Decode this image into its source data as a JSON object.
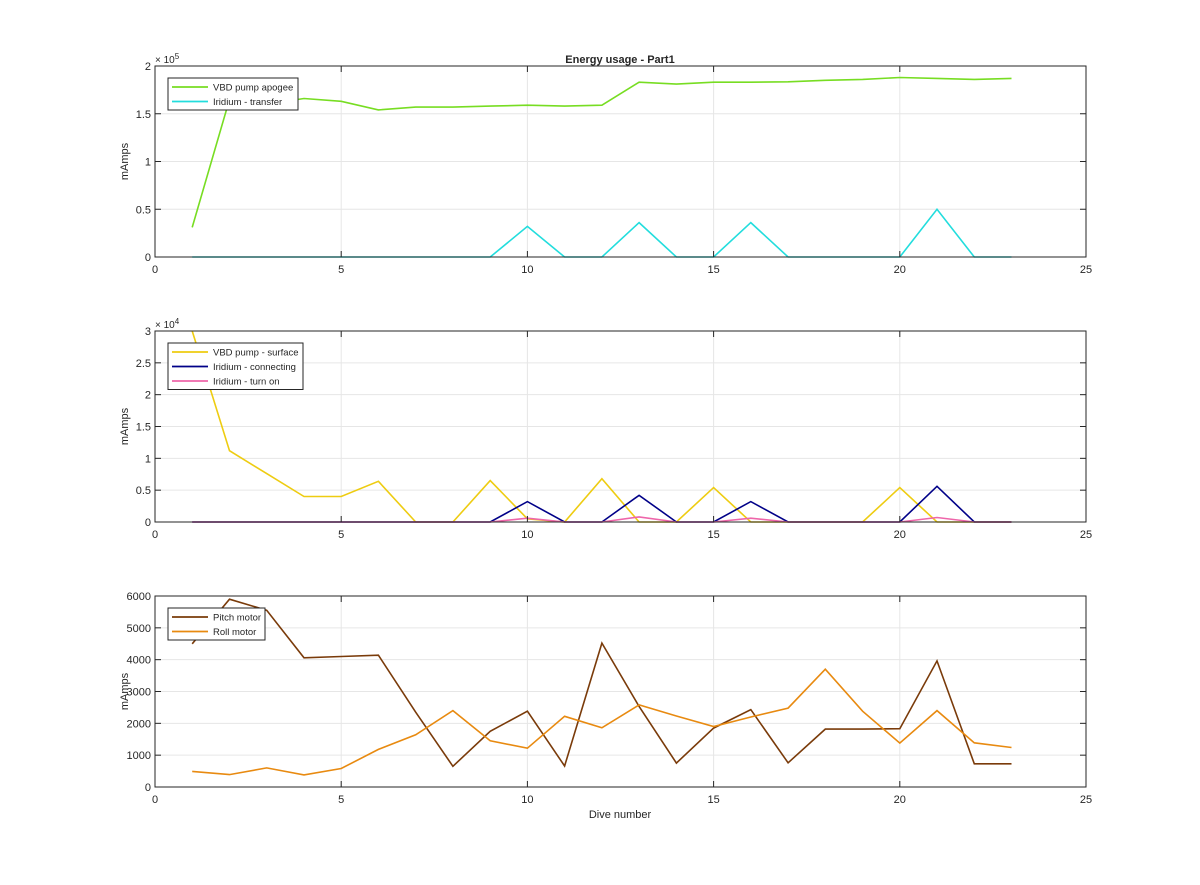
{
  "figure": {
    "title": "Energy usage - Part1",
    "xlabel": "Dive number"
  },
  "chart_data": [
    {
      "type": "line",
      "title": "Energy usage - Part1",
      "xlabel": "",
      "ylabel": "mAmps",
      "xlim": [
        0,
        25
      ],
      "ylim": [
        0,
        200000
      ],
      "xticks": [
        0,
        5,
        10,
        15,
        20,
        25
      ],
      "yticks": [
        0,
        50000,
        100000,
        150000,
        200000
      ],
      "ytick_labels": [
        "0",
        "0.5",
        "1",
        "1.5",
        "2"
      ],
      "exponent_label": "× 10",
      "exponent": "5",
      "grid": true,
      "legend": "top-left",
      "x": [
        1,
        2,
        3,
        4,
        5,
        6,
        7,
        8,
        9,
        10,
        11,
        12,
        13,
        14,
        15,
        16,
        17,
        18,
        19,
        20,
        21,
        22,
        23
      ],
      "series": [
        {
          "name": "VBD pump apogee",
          "color": "#77dd22",
          "values": [
            31000,
            165000,
            160000,
            166000,
            163000,
            154000,
            157000,
            157000,
            158000,
            159000,
            158000,
            159000,
            183000,
            181000,
            183000,
            183000,
            183500,
            185000,
            186000,
            188000,
            187000,
            186000,
            187000
          ]
        },
        {
          "name": "Iridium - transfer",
          "color": "#22dddd",
          "values": [
            0,
            0,
            0,
            0,
            0,
            0,
            0,
            0,
            0,
            32000,
            0,
            0,
            36000,
            0,
            0,
            36000,
            0,
            0,
            0,
            0,
            50000,
            0,
            0
          ]
        }
      ]
    },
    {
      "type": "line",
      "title": "",
      "xlabel": "",
      "ylabel": "mAmps",
      "xlim": [
        0,
        25
      ],
      "ylim": [
        0,
        30000
      ],
      "xticks": [
        0,
        5,
        10,
        15,
        20,
        25
      ],
      "yticks": [
        0,
        5000,
        10000,
        15000,
        20000,
        25000,
        30000
      ],
      "ytick_labels": [
        "0",
        "0.5",
        "1",
        "1.5",
        "2",
        "2.5",
        "3"
      ],
      "exponent_label": "× 10",
      "exponent": "4",
      "grid": true,
      "legend": "top-left",
      "x": [
        1,
        2,
        3,
        4,
        5,
        6,
        7,
        8,
        9,
        10,
        11,
        12,
        13,
        14,
        15,
        16,
        17,
        18,
        19,
        20,
        21,
        22,
        23
      ],
      "series": [
        {
          "name": "VBD pump - surface",
          "color": "#eecc11",
          "values": [
            30000,
            11200,
            7600,
            4000,
            4000,
            6400,
            0,
            0,
            6500,
            500,
            0,
            6800,
            0,
            0,
            5400,
            0,
            0,
            0,
            0,
            5400,
            0,
            0,
            0
          ]
        },
        {
          "name": "Iridium - connecting",
          "color": "#000088",
          "values": [
            0,
            0,
            0,
            0,
            0,
            0,
            0,
            0,
            0,
            3200,
            0,
            0,
            4200,
            0,
            0,
            3200,
            0,
            0,
            0,
            0,
            5600,
            0,
            0
          ]
        },
        {
          "name": "Iridium - turn on",
          "color": "#ee66aa",
          "values": [
            0,
            0,
            0,
            0,
            0,
            0,
            0,
            0,
            0,
            600,
            0,
            0,
            800,
            0,
            0,
            600,
            0,
            0,
            0,
            0,
            700,
            0,
            0
          ]
        }
      ]
    },
    {
      "type": "line",
      "title": "",
      "xlabel": "Dive number",
      "ylabel": "mAmps",
      "xlim": [
        0,
        25
      ],
      "ylim": [
        0,
        6000
      ],
      "xticks": [
        0,
        5,
        10,
        15,
        20,
        25
      ],
      "yticks": [
        0,
        1000,
        2000,
        3000,
        4000,
        5000,
        6000
      ],
      "ytick_labels": [
        "0",
        "1000",
        "2000",
        "3000",
        "4000",
        "5000",
        "6000"
      ],
      "exponent_label": "",
      "exponent": "",
      "grid": true,
      "legend": "top-left",
      "x": [
        1,
        2,
        3,
        4,
        5,
        6,
        7,
        8,
        9,
        10,
        11,
        12,
        13,
        14,
        15,
        16,
        17,
        18,
        19,
        20,
        21,
        22,
        23
      ],
      "series": [
        {
          "name": "Pitch motor",
          "color": "#7a3b0a",
          "values": [
            4500,
            5900,
            5550,
            4060,
            4100,
            4140,
            2350,
            650,
            1750,
            2380,
            660,
            4520,
            2530,
            750,
            1850,
            2430,
            760,
            1820,
            1820,
            1830,
            3960,
            730,
            730
          ]
        },
        {
          "name": "Roll motor",
          "color": "#e88a10",
          "values": [
            490,
            390,
            600,
            380,
            580,
            1180,
            1640,
            2400,
            1450,
            1220,
            2220,
            1860,
            2580,
            2230,
            1900,
            2200,
            2480,
            3700,
            2380,
            1380,
            2400,
            1390,
            1240
          ]
        }
      ]
    }
  ]
}
